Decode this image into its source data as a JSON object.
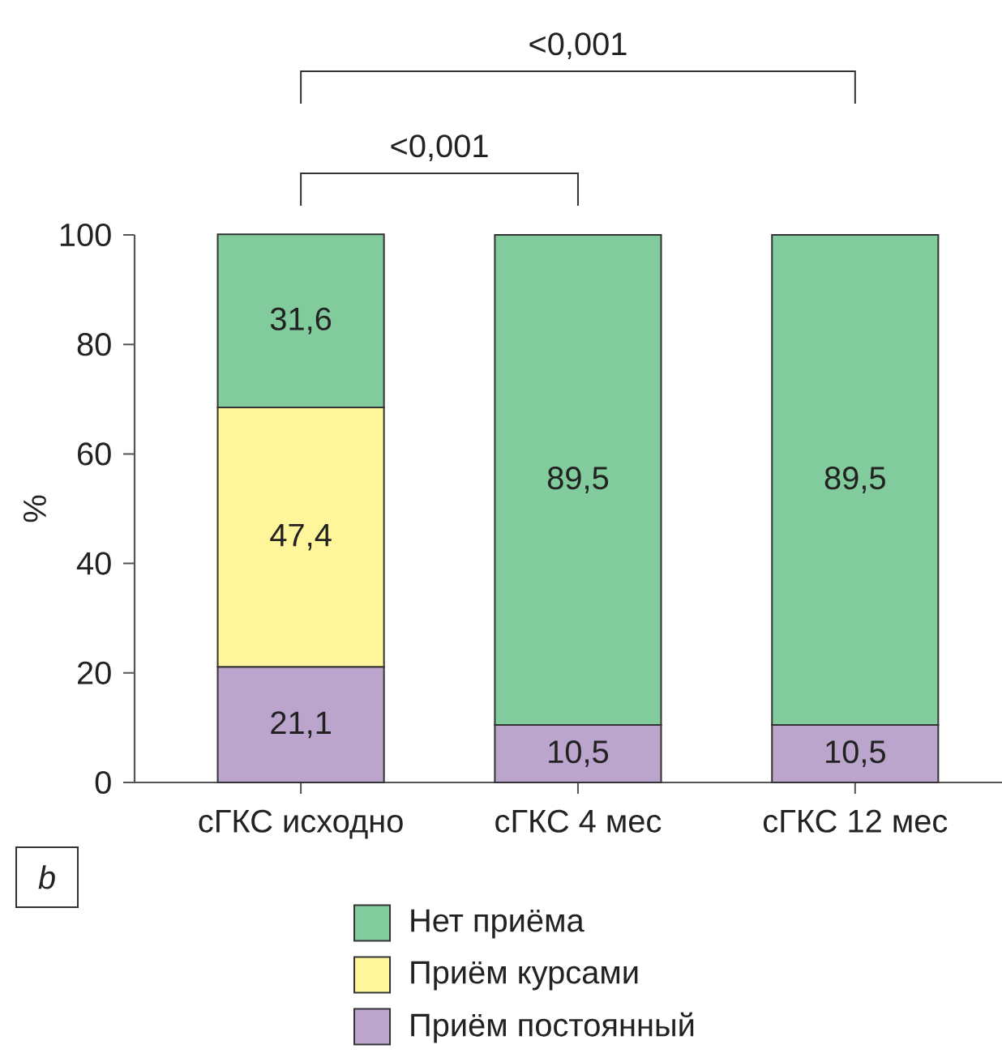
{
  "chart_data": {
    "type": "bar",
    "stacked": true,
    "ylabel": "%",
    "categories": [
      "сГКС исходно",
      "сГКС 4 мес",
      "сГКС 12 мес"
    ],
    "series": [
      {
        "name": "Приём постоянный",
        "color": "#bba5cd",
        "values": [
          21.1,
          10.5,
          10.5
        ],
        "value_labels": [
          "21,1",
          "10,5",
          "10,5"
        ]
      },
      {
        "name": "Приём курсами",
        "color": "#fff59a",
        "values": [
          47.4,
          null,
          null
        ],
        "value_labels": [
          "47,4",
          null,
          null
        ]
      },
      {
        "name": "Нет приёма",
        "color": "#82cb9d",
        "values": [
          31.6,
          89.5,
          89.5
        ],
        "value_labels": [
          "31,6",
          "89,5",
          "89,5"
        ]
      }
    ],
    "ylim": [
      0,
      100
    ],
    "yticks": [
      0,
      20,
      40,
      60,
      80,
      100
    ],
    "legend": "bottom",
    "annotations": [
      "<0,001",
      "<0,001",
      "b"
    ]
  }
}
